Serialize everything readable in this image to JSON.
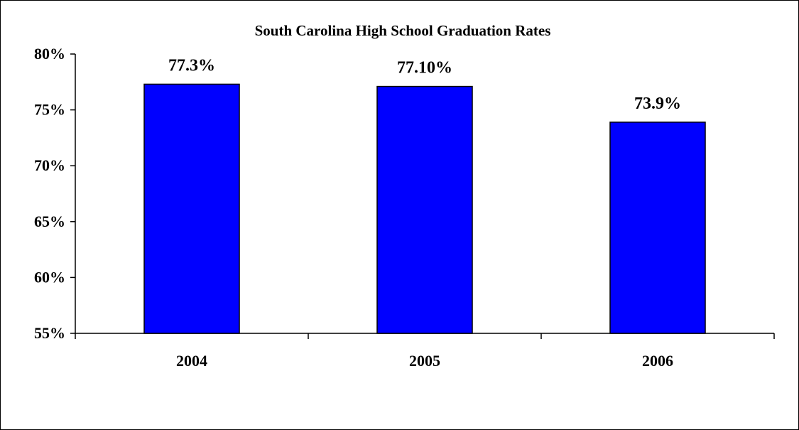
{
  "chart_data": {
    "type": "bar",
    "title": "South Carolina High School Graduation Rates",
    "categories": [
      "2004",
      "2005",
      "2006"
    ],
    "values": [
      77.3,
      77.1,
      73.9
    ],
    "data_labels": [
      "77.3%",
      "77.10%",
      "73.9%"
    ],
    "yticks": [
      "55%",
      "60%",
      "65%",
      "70%",
      "75%",
      "80%"
    ],
    "ytick_values": [
      55,
      60,
      65,
      70,
      75,
      80
    ],
    "ylim": [
      55,
      80
    ],
    "xlabel": "",
    "ylabel": "",
    "grid": false,
    "legend": "none",
    "bar_color": "#0000FF",
    "bar_edge_color": "#000000"
  }
}
